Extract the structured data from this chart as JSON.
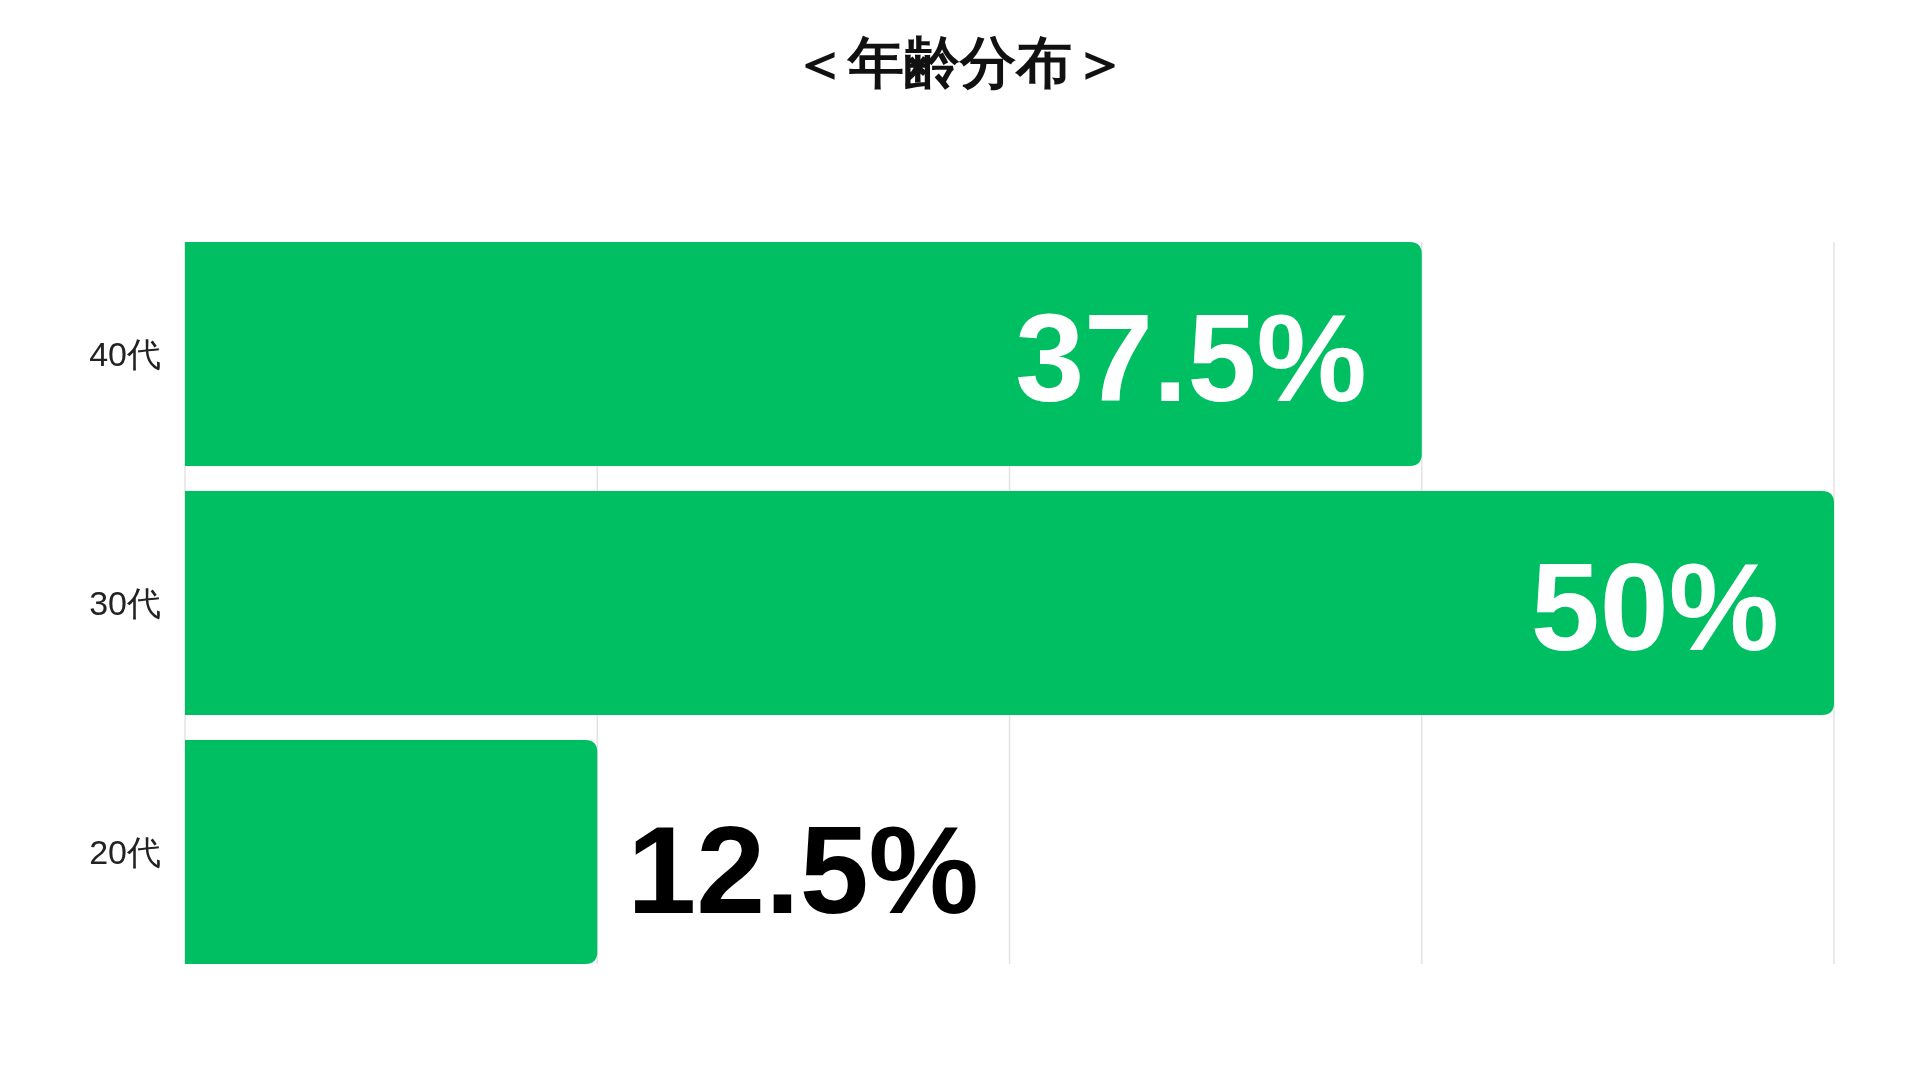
{
  "chart_data": {
    "type": "bar",
    "title": "＜年齢分布＞",
    "orientation": "horizontal",
    "categories": [
      "40代",
      "30代",
      "20代"
    ],
    "values": [
      37.5,
      50,
      12.5
    ],
    "value_labels": [
      "37.5%",
      "50%",
      "12.5%"
    ],
    "color": "#00bf63",
    "xlim": [
      0,
      50
    ],
    "xticks": [
      {
        "value": 0,
        "label": null
      },
      {
        "value": 12.5,
        "label": null
      },
      {
        "value": 25,
        "label": null
      },
      {
        "value": 37.5,
        "label": null
      },
      {
        "value": 50,
        "label": null
      }
    ],
    "grid": "x",
    "tick_labels": "y"
  }
}
